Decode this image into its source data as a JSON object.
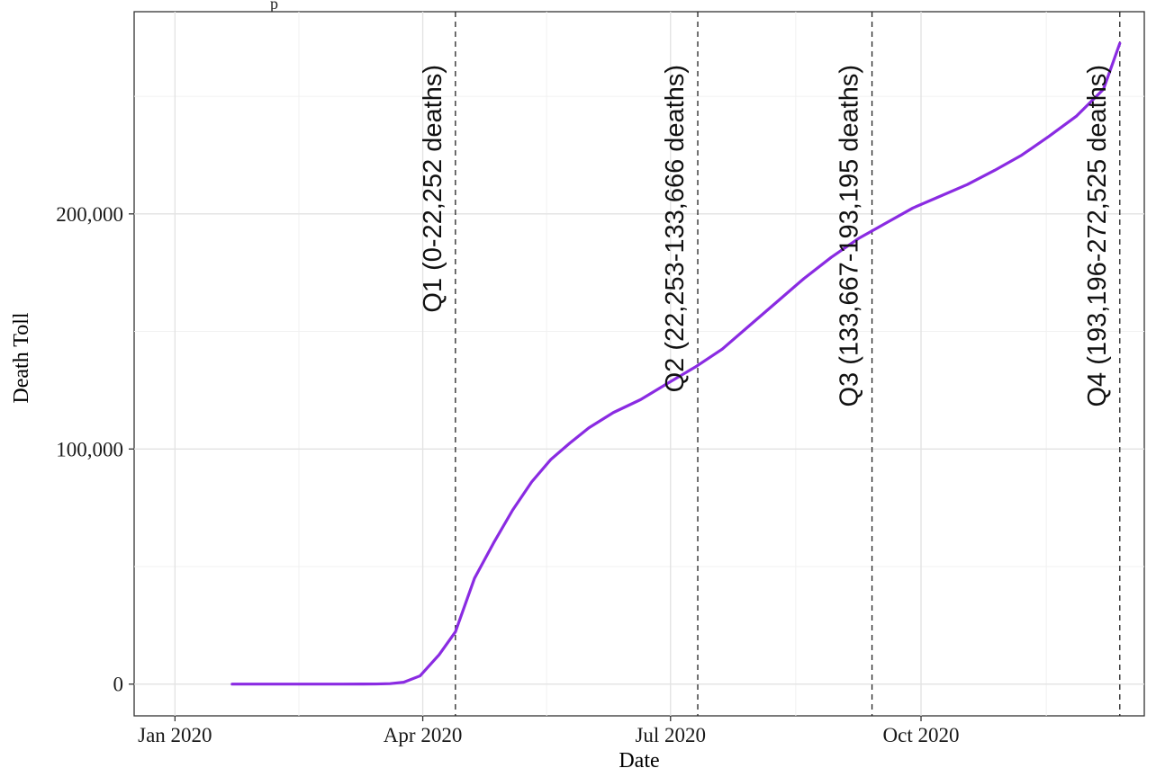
{
  "chart_data": {
    "type": "line",
    "title": "",
    "xlabel": "Date",
    "ylabel": "Death Toll",
    "x_tick_labels": [
      "Jan 2020",
      "Apr 2020",
      "Jul 2020",
      "Oct 2020"
    ],
    "x_tick_dates": [
      "2020-01-01",
      "2020-04-01",
      "2020-07-01",
      "2020-10-01"
    ],
    "y_tick_labels": [
      "0",
      "100,000",
      "200,000"
    ],
    "y_ticks": [
      0,
      100000,
      200000
    ],
    "xlim": [
      "2019-12-17",
      "2020-12-22"
    ],
    "ylim": [
      -13500,
      286000
    ],
    "grid": true,
    "line_color": "#8a2be2",
    "series": [
      {
        "x": [
          "2020-01-22",
          "2020-02-15",
          "2020-03-01",
          "2020-03-10",
          "2020-03-15",
          "2020-03-20",
          "2020-03-25",
          "2020-03-31",
          "2020-04-07",
          "2020-04-13",
          "2020-04-20",
          "2020-04-27",
          "2020-05-04",
          "2020-05-11",
          "2020-05-18",
          "2020-05-25",
          "2020-06-01",
          "2020-06-10",
          "2020-06-20",
          "2020-06-30",
          "2020-07-10",
          "2020-07-20",
          "2020-07-30",
          "2020-08-09",
          "2020-08-19",
          "2020-08-29",
          "2020-09-08",
          "2020-09-18",
          "2020-09-28",
          "2020-10-08",
          "2020-10-18",
          "2020-10-28",
          "2020-11-07",
          "2020-11-17",
          "2020-11-27",
          "2020-12-07",
          "2020-12-13"
        ],
        "values": [
          0,
          0,
          1,
          30,
          60,
          200,
          800,
          3500,
          12500,
          22252,
          45000,
          60000,
          74000,
          86000,
          95500,
          102500,
          109000,
          115500,
          121000,
          128000,
          134800,
          142500,
          152500,
          162500,
          172500,
          181500,
          189500,
          196000,
          202500,
          207500,
          212500,
          218500,
          225000,
          233000,
          241500,
          253000,
          272525
        ]
      }
    ],
    "annotations": [
      {
        "date": "2020-04-13",
        "label": "Q1 (0-22,252 deaths)"
      },
      {
        "date": "2020-07-11",
        "label": "Q2 (22,253-133,666 deaths)"
      },
      {
        "date": "2020-09-13",
        "label": "Q3 (133,667-193,195 deaths)"
      },
      {
        "date": "2020-12-13",
        "label": "Q4 (193,196-272,525 deaths)"
      }
    ],
    "clipped_top_text": "p"
  }
}
